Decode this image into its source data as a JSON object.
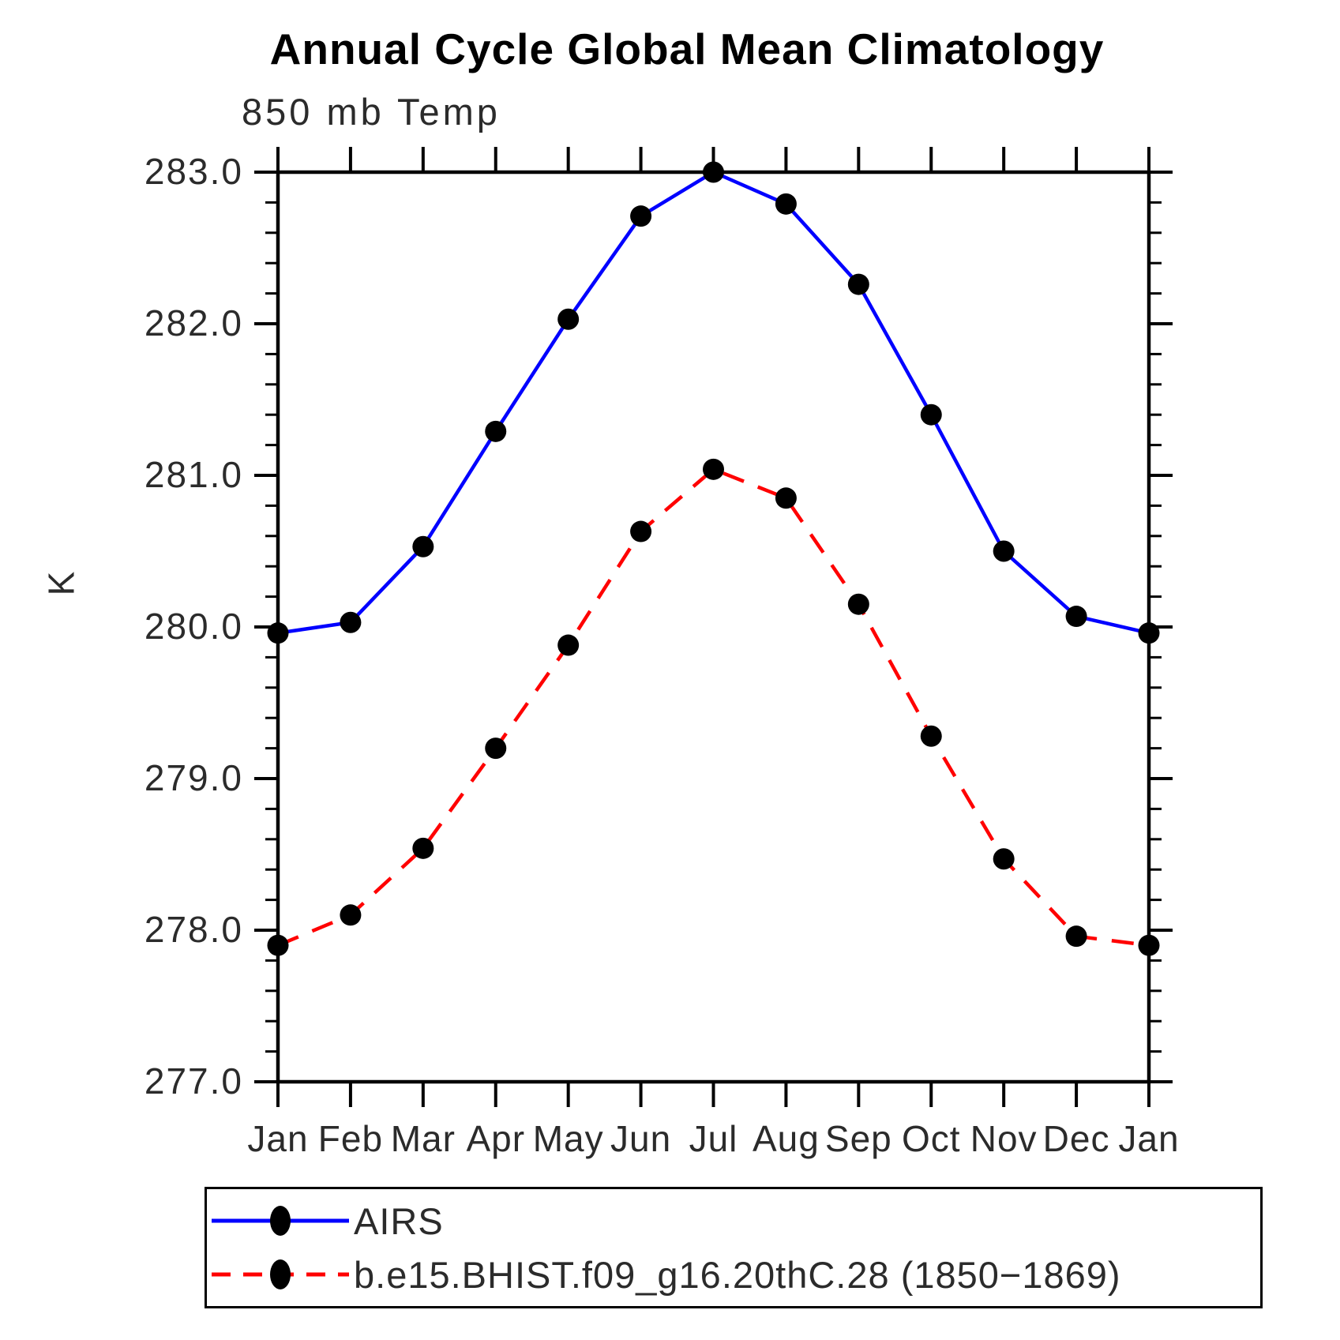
{
  "header": {
    "title": "Annual Cycle Global Mean Climatology",
    "subtitle": "850 mb Temp"
  },
  "chart_data": {
    "type": "line",
    "title": "Annual Cycle Global Mean Climatology",
    "subtitle": "850 mb Temp",
    "xlabel": "",
    "ylabel": "K",
    "categories": [
      "Jan",
      "Feb",
      "Mar",
      "Apr",
      "May",
      "Jun",
      "Jul",
      "Aug",
      "Sep",
      "Oct",
      "Nov",
      "Dec",
      "Jan"
    ],
    "ylim": [
      277.0,
      283.0
    ],
    "ytick_step": 1.0,
    "yminor_step": 0.2,
    "ytick_labels": [
      "277.0",
      "278.0",
      "279.0",
      "280.0",
      "281.0",
      "282.0",
      "283.0"
    ],
    "grid": false,
    "legend_position": "bottom",
    "axis_color": "#000000",
    "marker_color": "#000000",
    "series": [
      {
        "name": "AIRS",
        "color": "#0000ff",
        "line_style": "solid",
        "values": [
          279.96,
          280.03,
          280.53,
          281.29,
          282.03,
          282.71,
          283.0,
          282.79,
          282.26,
          281.4,
          280.5,
          280.07,
          279.96
        ]
      },
      {
        "name": "b.e15.BHIST.f09_g16.20thC.28 (1850−1869)",
        "color": "#ff0000",
        "line_style": "dashed",
        "values": [
          277.9,
          278.1,
          278.54,
          279.2,
          279.88,
          280.63,
          281.04,
          280.85,
          280.15,
          279.28,
          278.47,
          277.96,
          277.9
        ]
      }
    ]
  }
}
